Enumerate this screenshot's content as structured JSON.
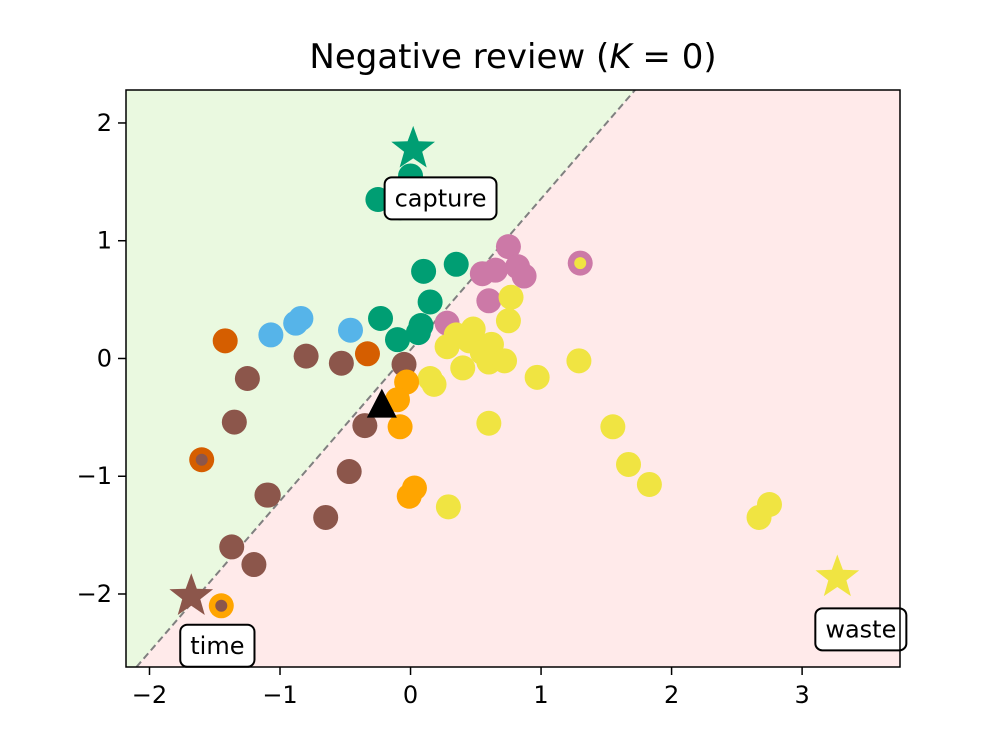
{
  "chart_data": {
    "type": "scatter",
    "title": "Negative review (K = 0)",
    "title_parts": {
      "prefix": "Negative review (",
      "var": "K",
      "suffix": " = 0)"
    },
    "xlim": [
      -2.18,
      3.75
    ],
    "ylim": [
      -2.62,
      2.28
    ],
    "x_ticks": [
      -2,
      -1,
      0,
      1,
      2,
      3
    ],
    "y_ticks": [
      -2,
      -1,
      0,
      1,
      2
    ],
    "x_tick_labels": [
      "−2",
      "−1",
      "0",
      "1",
      "2",
      "3"
    ],
    "y_tick_labels": [
      "−2",
      "−1",
      "0",
      "1",
      "2"
    ],
    "grid": false,
    "regions": {
      "upper_left_color": "#eaf9e0",
      "lower_right_color": "#ffeaea",
      "boundary": {
        "p1": [
          -2.1,
          -2.62
        ],
        "p2": [
          1.72,
          2.28
        ],
        "color": "#808080",
        "style": "dashed"
      }
    },
    "colors": {
      "green": "#009e73",
      "pink": "#cc79a7",
      "yellow": "#f0e442",
      "orange": "#ffa500",
      "darkorange": "#d55e00",
      "brown": "#8c564b",
      "skyblue": "#56b4e9",
      "black": "#000000"
    },
    "points": [
      {
        "x": 0.0,
        "y": 1.55,
        "c": "green"
      },
      {
        "x": -0.25,
        "y": 1.35,
        "c": "green"
      },
      {
        "x": -0.08,
        "y": 1.28,
        "c": "green"
      },
      {
        "x": 0.1,
        "y": 0.74,
        "c": "green"
      },
      {
        "x": 0.35,
        "y": 0.8,
        "c": "green"
      },
      {
        "x": 0.15,
        "y": 0.48,
        "c": "green"
      },
      {
        "x": -0.23,
        "y": 0.34,
        "c": "green"
      },
      {
        "x": 0.08,
        "y": 0.28,
        "c": "green"
      },
      {
        "x": -0.1,
        "y": 0.16,
        "c": "green"
      },
      {
        "x": 0.06,
        "y": 0.22,
        "c": "green"
      },
      {
        "x": -1.07,
        "y": 0.2,
        "c": "skyblue"
      },
      {
        "x": -0.88,
        "y": 0.3,
        "c": "skyblue"
      },
      {
        "x": -0.84,
        "y": 0.34,
        "c": "skyblue"
      },
      {
        "x": -0.46,
        "y": 0.24,
        "c": "skyblue"
      },
      {
        "x": -1.42,
        "y": 0.15,
        "c": "darkorange"
      },
      {
        "x": -0.33,
        "y": 0.04,
        "c": "darkorange"
      },
      {
        "x": -1.6,
        "y": -0.86,
        "c": "darkorange",
        "inner": "brown"
      },
      {
        "x": -0.8,
        "y": 0.02,
        "c": "brown"
      },
      {
        "x": -0.53,
        "y": -0.04,
        "c": "brown"
      },
      {
        "x": -0.05,
        "y": -0.05,
        "c": "brown"
      },
      {
        "x": -1.25,
        "y": -0.17,
        "c": "brown"
      },
      {
        "x": -1.35,
        "y": -0.54,
        "c": "brown"
      },
      {
        "x": -0.35,
        "y": -0.57,
        "c": "brown"
      },
      {
        "x": -0.47,
        "y": -0.96,
        "c": "brown"
      },
      {
        "x": -1.1,
        "y": -1.16,
        "c": "brown"
      },
      {
        "x": -1.09,
        "y": -1.16,
        "c": "brown"
      },
      {
        "x": -0.65,
        "y": -1.35,
        "c": "brown"
      },
      {
        "x": -1.37,
        "y": -1.6,
        "c": "brown"
      },
      {
        "x": -1.2,
        "y": -1.75,
        "c": "brown"
      },
      {
        "x": 0.28,
        "y": 0.3,
        "c": "pink"
      },
      {
        "x": 0.55,
        "y": 0.72,
        "c": "pink"
      },
      {
        "x": 0.65,
        "y": 0.75,
        "c": "pink"
      },
      {
        "x": 0.75,
        "y": 0.95,
        "c": "pink"
      },
      {
        "x": 0.82,
        "y": 0.78,
        "c": "pink"
      },
      {
        "x": 0.87,
        "y": 0.7,
        "c": "pink"
      },
      {
        "x": 0.6,
        "y": 0.49,
        "c": "pink"
      },
      {
        "x": 1.3,
        "y": 0.81,
        "c": "pink",
        "inner": "yellow"
      },
      {
        "x": 0.77,
        "y": 0.52,
        "c": "yellow"
      },
      {
        "x": 0.75,
        "y": 0.32,
        "c": "yellow"
      },
      {
        "x": 0.35,
        "y": 0.2,
        "c": "yellow"
      },
      {
        "x": 0.28,
        "y": 0.1,
        "c": "yellow"
      },
      {
        "x": 0.45,
        "y": 0.15,
        "c": "yellow"
      },
      {
        "x": 0.48,
        "y": 0.25,
        "c": "yellow"
      },
      {
        "x": 0.55,
        "y": 0.05,
        "c": "yellow"
      },
      {
        "x": 0.62,
        "y": 0.12,
        "c": "yellow"
      },
      {
        "x": 0.4,
        "y": -0.08,
        "c": "yellow"
      },
      {
        "x": 0.6,
        "y": -0.03,
        "c": "yellow"
      },
      {
        "x": 0.72,
        "y": -0.02,
        "c": "yellow"
      },
      {
        "x": 0.15,
        "y": -0.17,
        "c": "yellow"
      },
      {
        "x": 0.18,
        "y": -0.22,
        "c": "yellow"
      },
      {
        "x": 0.97,
        "y": -0.16,
        "c": "yellow"
      },
      {
        "x": 1.29,
        "y": -0.02,
        "c": "yellow"
      },
      {
        "x": 0.6,
        "y": -0.55,
        "c": "yellow"
      },
      {
        "x": 1.55,
        "y": -0.58,
        "c": "yellow"
      },
      {
        "x": 1.67,
        "y": -0.9,
        "c": "yellow"
      },
      {
        "x": 1.83,
        "y": -1.07,
        "c": "yellow"
      },
      {
        "x": 0.29,
        "y": -1.26,
        "c": "yellow"
      },
      {
        "x": 2.67,
        "y": -1.35,
        "c": "yellow"
      },
      {
        "x": 2.75,
        "y": -1.24,
        "c": "yellow"
      },
      {
        "x": -0.03,
        "y": -0.2,
        "c": "orange"
      },
      {
        "x": -0.1,
        "y": -0.35,
        "c": "orange"
      },
      {
        "x": -0.08,
        "y": -0.58,
        "c": "orange"
      },
      {
        "x": 0.03,
        "y": -1.1,
        "c": "orange"
      },
      {
        "x": -0.01,
        "y": -1.17,
        "c": "orange"
      },
      {
        "x": -1.45,
        "y": -2.1,
        "c": "orange",
        "inner": "brown"
      }
    ],
    "stars": [
      {
        "x": 0.02,
        "y": 1.78,
        "c": "green"
      },
      {
        "x": -1.68,
        "y": -2.02,
        "c": "brown"
      },
      {
        "x": 3.27,
        "y": -1.86,
        "c": "yellow"
      }
    ],
    "triangle": {
      "x": -0.22,
      "y": -0.4,
      "c": "black"
    },
    "annotations": [
      {
        "text": "capture",
        "x": 0.23,
        "y": 1.36
      },
      {
        "text": "time",
        "x": -1.48,
        "y": -2.44
      },
      {
        "text": "waste",
        "x": 3.45,
        "y": -2.3
      }
    ]
  }
}
